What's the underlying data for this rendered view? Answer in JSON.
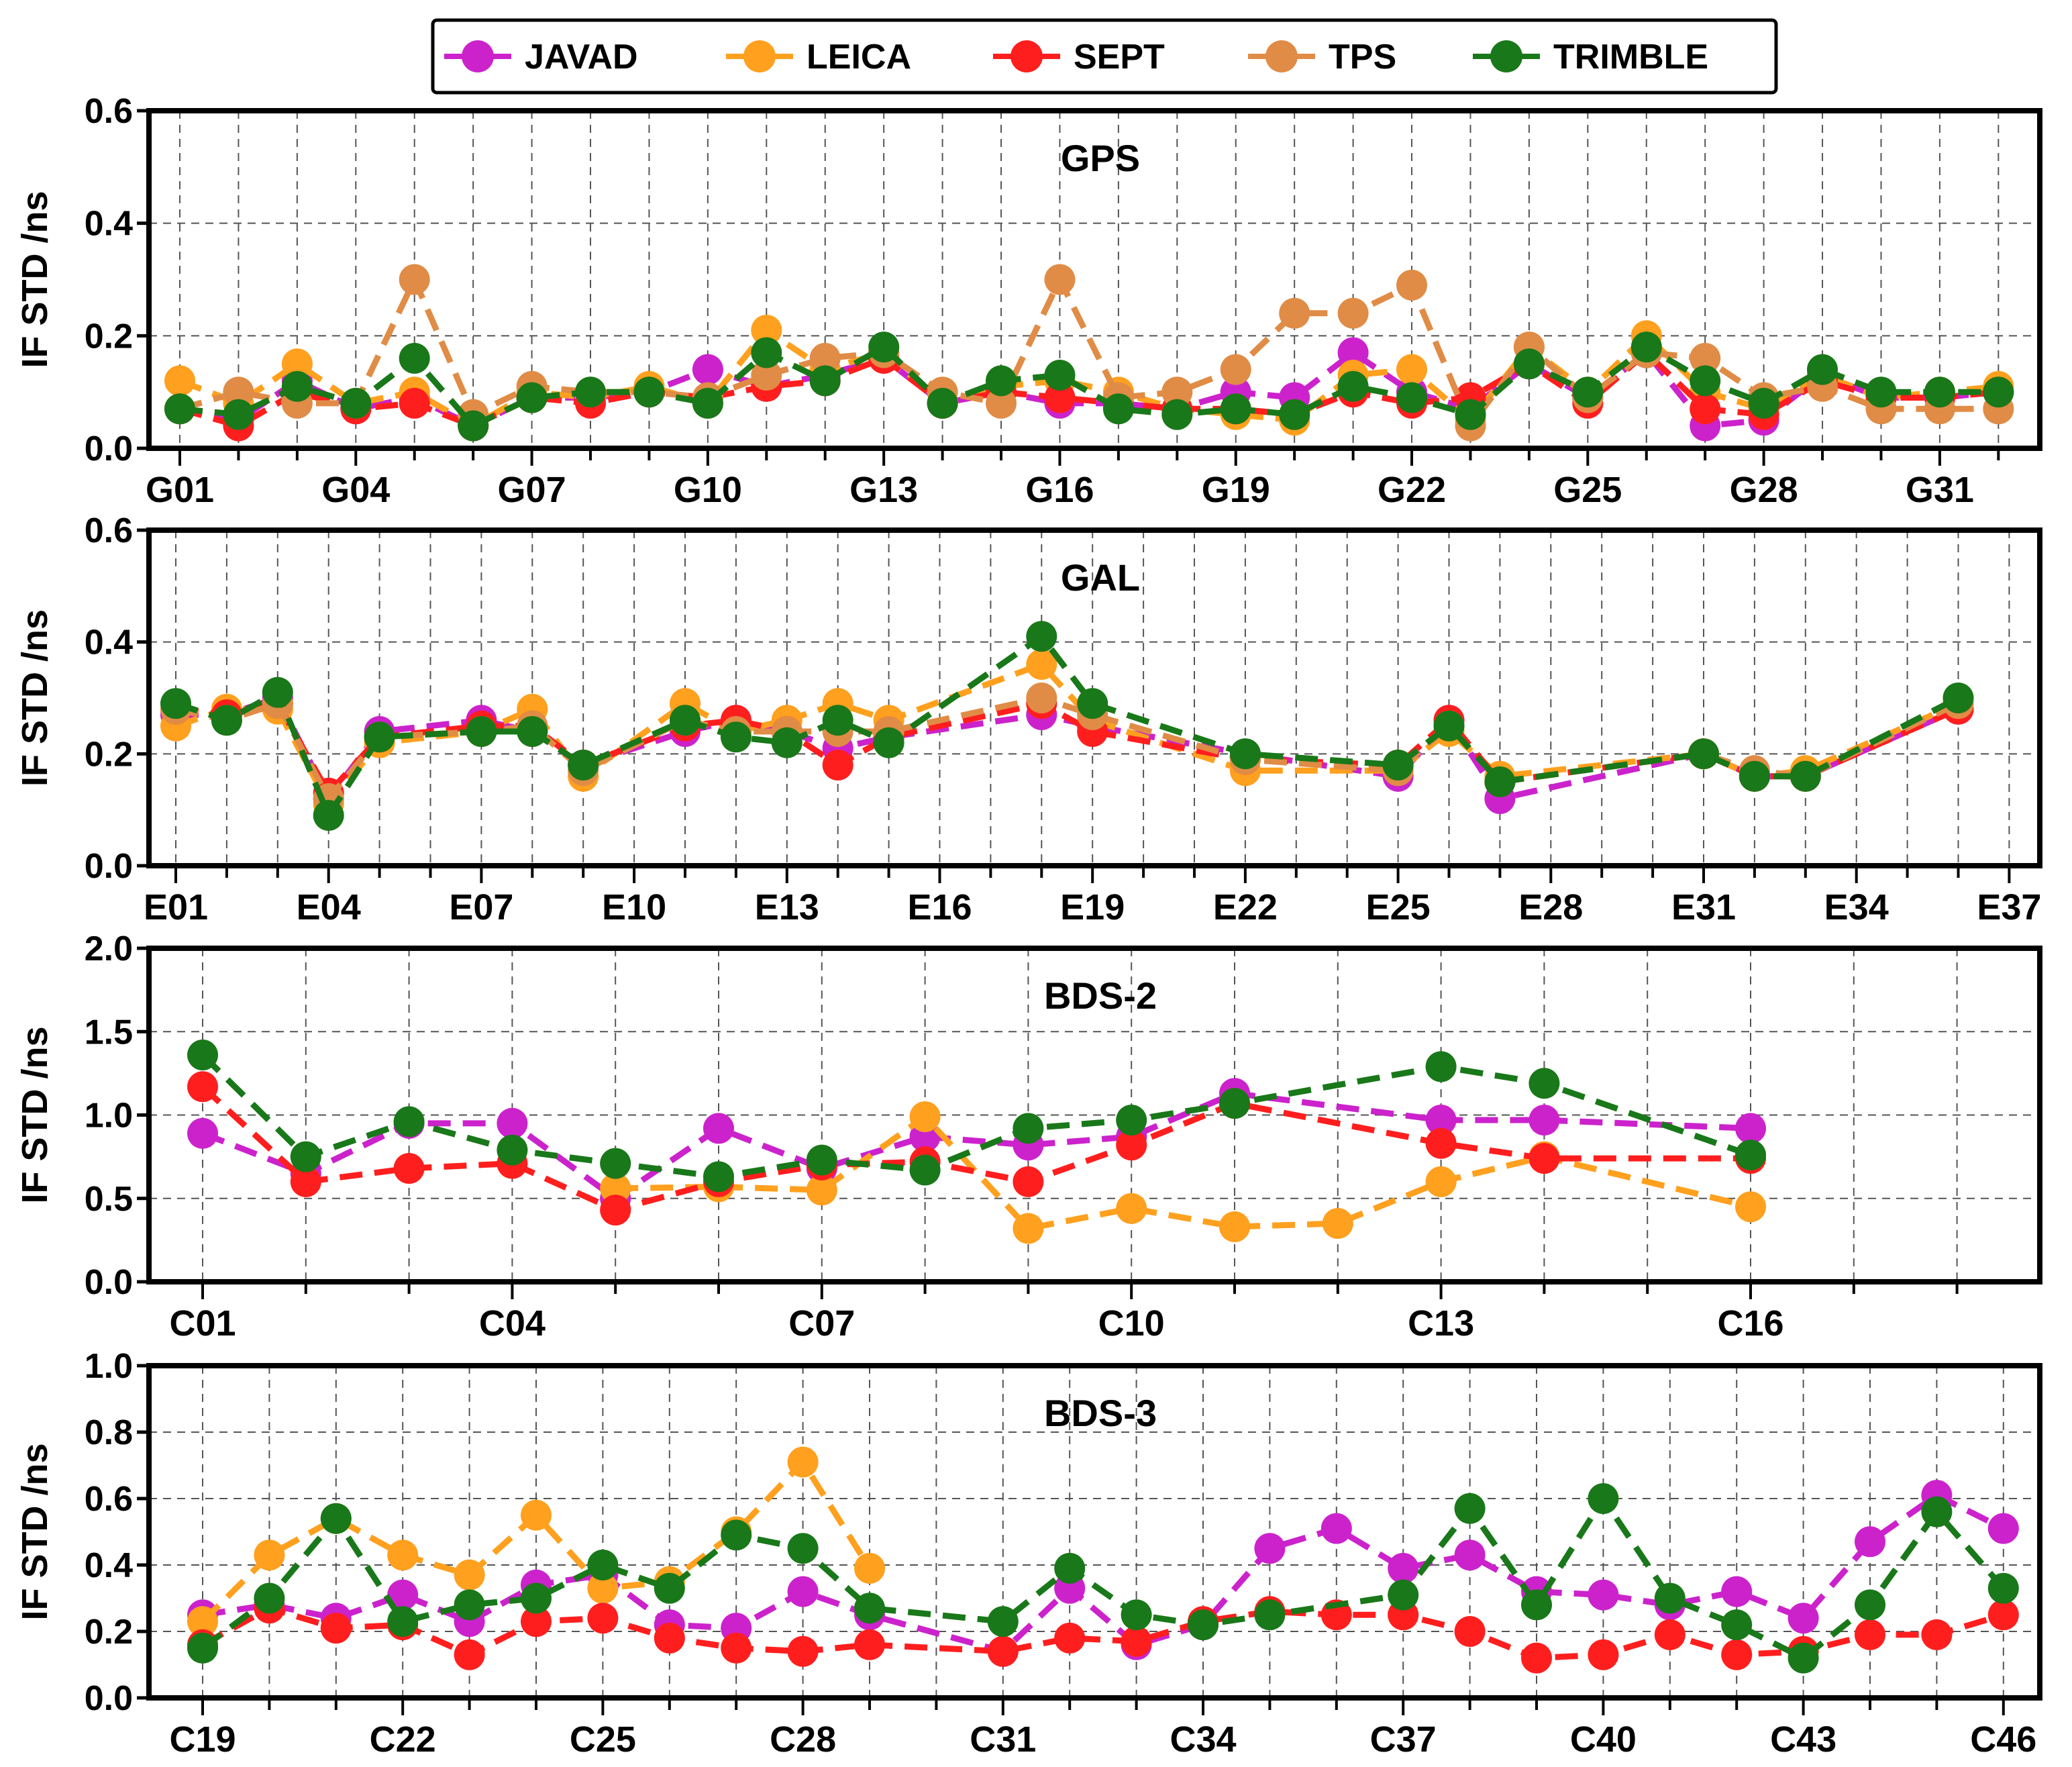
{
  "legend": {
    "entries": [
      {
        "name": "JAVAD",
        "color": "#CC22CC"
      },
      {
        "name": "LEICA",
        "color": "#FFA01E"
      },
      {
        "name": "SEPT",
        "color": "#FF1E1E"
      },
      {
        "name": "TPS",
        "color": "#E08C46"
      },
      {
        "name": "TRIMBLE",
        "color": "#197819"
      }
    ]
  },
  "chart_data": [
    {
      "type": "line",
      "title": "GPS",
      "ylabel": "IF STD /ns",
      "ylim": [
        0,
        0.6
      ],
      "yticks": [
        "0.0",
        "0.2",
        "0.4",
        "0.6"
      ],
      "categories": [
        "G01",
        "G02",
        "G03",
        "G04",
        "G05",
        "G06",
        "G07",
        "G08",
        "G09",
        "G10",
        "G11",
        "G12",
        "G13",
        "G14",
        "G15",
        "G16",
        "G17",
        "G18",
        "G19",
        "G20",
        "G21",
        "G22",
        "G23",
        "G24",
        "G25",
        "G26",
        "G27",
        "G28",
        "G29",
        "G30",
        "G31",
        "G32"
      ],
      "tick_labels": [
        "G01",
        "G04",
        "G07",
        "G10",
        "G13",
        "G16",
        "G19",
        "G22",
        "G25",
        "G28",
        "G31"
      ],
      "series": [
        {
          "name": "JAVAD",
          "values": [
            0.07,
            0.05,
            0.12,
            0.07,
            0.09,
            0.04,
            0.09,
            0.09,
            0.1,
            0.14,
            0.11,
            0.13,
            0.16,
            0.08,
            0.1,
            0.08,
            0.08,
            0.07,
            0.1,
            0.09,
            0.17,
            0.1,
            0.07,
            0.15,
            0.09,
            0.17,
            0.04,
            0.05,
            0.13,
            0.09,
            0.09,
            0.1
          ]
        },
        {
          "name": "LEICA",
          "values": [
            0.12,
            0.08,
            0.15,
            0.08,
            0.1,
            0.04,
            0.1,
            0.09,
            0.11,
            0.08,
            0.21,
            0.14,
            0.17,
            0.08,
            0.11,
            0.12,
            0.1,
            0.07,
            0.06,
            0.05,
            0.13,
            0.14,
            0.05,
            0.18,
            0.1,
            0.2,
            0.1,
            0.07,
            0.13,
            0.09,
            0.1,
            0.11
          ]
        },
        {
          "name": "SEPT",
          "values": [
            0.07,
            0.04,
            0.1,
            0.07,
            0.08,
            0.04,
            0.09,
            0.08,
            0.1,
            0.09,
            0.11,
            0.12,
            0.16,
            0.08,
            0.1,
            0.09,
            0.08,
            0.07,
            0.07,
            0.06,
            0.1,
            0.08,
            0.09,
            0.15,
            0.08,
            0.17,
            0.07,
            0.06,
            0.12,
            0.09,
            0.09,
            0.1
          ]
        },
        {
          "name": "TPS",
          "values": [
            0.07,
            0.1,
            0.08,
            0.08,
            0.3,
            0.06,
            0.11,
            0.1,
            0.1,
            0.09,
            0.13,
            0.16,
            0.17,
            0.1,
            0.08,
            0.3,
            0.09,
            0.1,
            0.14,
            0.24,
            0.24,
            0.29,
            0.04,
            0.18,
            0.09,
            0.17,
            0.16,
            0.09,
            0.11,
            0.07,
            0.07,
            0.07
          ]
        },
        {
          "name": "TRIMBLE",
          "values": [
            0.07,
            0.06,
            0.11,
            0.08,
            0.16,
            0.04,
            0.09,
            0.1,
            0.1,
            0.08,
            0.17,
            0.12,
            0.18,
            0.08,
            0.12,
            0.13,
            0.07,
            0.06,
            0.07,
            0.06,
            0.11,
            0.09,
            0.06,
            0.15,
            0.1,
            0.18,
            0.12,
            0.08,
            0.14,
            0.1,
            0.1,
            0.1
          ]
        }
      ]
    },
    {
      "type": "line",
      "title": "GAL",
      "ylabel": "IF STD /ns",
      "ylim": [
        0,
        0.6
      ],
      "yticks": [
        "0.0",
        "0.2",
        "0.4",
        "0.6"
      ],
      "categories": [
        "E01",
        "E02",
        "E03",
        "E04",
        "E05",
        "E06",
        "E07",
        "E08",
        "E09",
        "E10",
        "E11",
        "E12",
        "E13",
        "E14",
        "E15",
        "E16",
        "E17",
        "E18",
        "E19",
        "E20",
        "E21",
        "E22",
        "E23",
        "E24",
        "E25",
        "E26",
        "E27",
        "E28",
        "E29",
        "E30",
        "E31",
        "E32",
        "E33",
        "E34",
        "E35",
        "E36",
        "E37"
      ],
      "tick_labels": [
        "E01",
        "E04",
        "E07",
        "E10",
        "E13",
        "E16",
        "E19",
        "E22",
        "E25",
        "E28",
        "E31",
        "E34",
        "E37"
      ],
      "series": [
        {
          "name": "JAVAD",
          "values": [
            0.27,
            0.27,
            0.3,
            0.12,
            0.24,
            null,
            0.26,
            0.24,
            0.18,
            null,
            0.24,
            0.26,
            0.24,
            0.21,
            0.23,
            null,
            null,
            0.27,
            0.25,
            null,
            null,
            0.2,
            null,
            null,
            0.16,
            0.26,
            0.12,
            null,
            null,
            null,
            0.2,
            0.16,
            0.16,
            null,
            null,
            0.28,
            null
          ]
        },
        {
          "name": "LEICA",
          "values": [
            0.25,
            0.28,
            0.28,
            0.11,
            0.22,
            null,
            0.24,
            0.28,
            0.16,
            null,
            0.29,
            0.24,
            0.26,
            0.29,
            0.26,
            null,
            null,
            0.36,
            0.26,
            null,
            null,
            0.17,
            null,
            null,
            0.17,
            0.24,
            0.16,
            null,
            null,
            null,
            0.2,
            0.16,
            0.17,
            null,
            null,
            0.29,
            null
          ]
        },
        {
          "name": "SEPT",
          "values": [
            0.28,
            0.27,
            0.29,
            0.13,
            0.23,
            null,
            0.25,
            0.25,
            0.18,
            null,
            0.25,
            0.26,
            0.24,
            0.18,
            0.23,
            null,
            null,
            0.29,
            0.24,
            null,
            null,
            0.19,
            null,
            null,
            0.18,
            0.26,
            0.15,
            null,
            null,
            null,
            0.2,
            0.16,
            0.16,
            null,
            null,
            0.28,
            null
          ]
        },
        {
          "name": "TPS",
          "values": [
            0.28,
            0.26,
            0.29,
            0.12,
            0.23,
            null,
            0.24,
            0.25,
            0.17,
            null,
            0.26,
            0.24,
            0.24,
            0.24,
            0.24,
            null,
            null,
            0.3,
            0.27,
            null,
            null,
            0.19,
            null,
            null,
            0.17,
            0.25,
            0.15,
            null,
            null,
            null,
            0.2,
            0.17,
            0.16,
            null,
            null,
            0.29,
            null
          ]
        },
        {
          "name": "TRIMBLE",
          "values": [
            0.29,
            0.26,
            0.31,
            0.09,
            0.23,
            null,
            0.24,
            0.24,
            0.18,
            null,
            0.26,
            0.23,
            0.22,
            0.26,
            0.22,
            null,
            null,
            0.41,
            0.29,
            null,
            null,
            0.2,
            null,
            null,
            0.18,
            0.25,
            0.15,
            null,
            null,
            null,
            0.2,
            0.16,
            0.16,
            null,
            null,
            0.3,
            null
          ]
        }
      ]
    },
    {
      "type": "line",
      "title": "BDS-2",
      "ylabel": "IF STD /ns",
      "ylim": [
        0,
        2.0
      ],
      "yticks": [
        "0.0",
        "0.5",
        "1.0",
        "1.5",
        "2.0"
      ],
      "categories": [
        "C01",
        "C02",
        "C03",
        "C04",
        "C05",
        "C06",
        "C07",
        "C08",
        "C09",
        "C10",
        "C11",
        "C12",
        "C13",
        "C14",
        "C15",
        "C16",
        "C17",
        "C18"
      ],
      "tick_labels": [
        "C01",
        "C04",
        "C07",
        "C10",
        "C13",
        "C16"
      ],
      "series": [
        {
          "name": "JAVAD",
          "values": [
            0.89,
            0.65,
            0.95,
            0.95,
            0.5,
            0.92,
            0.68,
            0.87,
            0.82,
            0.87,
            1.13,
            null,
            0.97,
            0.97,
            null,
            0.92,
            null,
            null
          ]
        },
        {
          "name": "LEICA",
          "values": [
            null,
            null,
            null,
            null,
            0.56,
            0.57,
            0.55,
            0.99,
            0.32,
            0.44,
            0.33,
            0.35,
            0.6,
            0.75,
            null,
            0.45,
            null,
            null
          ]
        },
        {
          "name": "SEPT",
          "values": [
            1.17,
            0.6,
            0.68,
            0.71,
            0.43,
            0.6,
            0.7,
            0.72,
            0.6,
            0.82,
            1.07,
            null,
            0.83,
            0.74,
            null,
            0.74,
            null,
            null
          ]
        },
        {
          "name": "TPS",
          "values": [
            null,
            null,
            null,
            null,
            null,
            null,
            null,
            null,
            null,
            null,
            null,
            null,
            null,
            null,
            null,
            null,
            null,
            null
          ]
        },
        {
          "name": "TRIMBLE",
          "values": [
            1.36,
            0.75,
            0.96,
            0.79,
            0.71,
            0.63,
            0.73,
            0.67,
            0.92,
            0.97,
            1.07,
            null,
            1.29,
            1.19,
            null,
            0.76,
            null,
            null
          ]
        }
      ]
    },
    {
      "type": "line",
      "title": "BDS-3",
      "ylabel": "IF STD /ns",
      "ylim": [
        0,
        1.0
      ],
      "yticks": [
        "0.0",
        "0.2",
        "0.4",
        "0.6",
        "0.8",
        "1.0"
      ],
      "categories": [
        "C19",
        "C20",
        "C21",
        "C22",
        "C23",
        "C24",
        "C25",
        "C26",
        "C27",
        "C28",
        "C29",
        "C30",
        "C31",
        "C32",
        "C33",
        "C34",
        "C35",
        "C36",
        "C37",
        "C38",
        "C39",
        "C40",
        "C41",
        "C42",
        "C43",
        "C44",
        "C45",
        "C46"
      ],
      "tick_labels": [
        "C19",
        "C22",
        "C25",
        "C28",
        "C31",
        "C34",
        "C37",
        "C40",
        "C43",
        "C46"
      ],
      "series": [
        {
          "name": "JAVAD",
          "values": [
            0.25,
            0.28,
            0.24,
            0.31,
            0.23,
            0.34,
            0.37,
            0.22,
            0.21,
            0.32,
            0.25,
            null,
            0.14,
            0.33,
            0.16,
            0.22,
            0.45,
            0.51,
            0.39,
            0.43,
            0.32,
            0.31,
            0.28,
            0.32,
            0.24,
            0.47,
            0.61,
            0.51
          ]
        },
        {
          "name": "LEICA",
          "values": [
            0.23,
            0.43,
            0.54,
            0.43,
            0.37,
            0.55,
            0.33,
            0.35,
            0.5,
            0.71,
            0.39,
            null,
            null,
            null,
            null,
            null,
            null,
            null,
            null,
            null,
            null,
            null,
            null,
            null,
            null,
            null,
            null,
            null
          ]
        },
        {
          "name": "SEPT",
          "values": [
            0.16,
            0.27,
            0.21,
            0.22,
            0.13,
            0.23,
            0.24,
            0.18,
            0.15,
            0.14,
            0.16,
            null,
            0.14,
            0.18,
            0.17,
            0.23,
            0.26,
            0.25,
            0.25,
            0.2,
            0.12,
            0.13,
            0.19,
            0.13,
            0.14,
            0.19,
            0.19,
            0.25
          ]
        },
        {
          "name": "TPS",
          "values": [
            null,
            null,
            null,
            null,
            null,
            null,
            null,
            null,
            null,
            null,
            null,
            null,
            null,
            null,
            null,
            null,
            null,
            null,
            null,
            null,
            null,
            null,
            null,
            null,
            null,
            null,
            null,
            null
          ]
        },
        {
          "name": "TRIMBLE",
          "values": [
            0.15,
            0.3,
            0.54,
            0.23,
            0.28,
            0.3,
            0.4,
            0.33,
            0.49,
            0.45,
            0.27,
            null,
            0.23,
            0.39,
            0.25,
            0.22,
            0.25,
            null,
            0.31,
            0.57,
            0.28,
            0.6,
            0.3,
            0.22,
            0.12,
            0.28,
            0.56,
            0.33
          ]
        }
      ]
    }
  ]
}
